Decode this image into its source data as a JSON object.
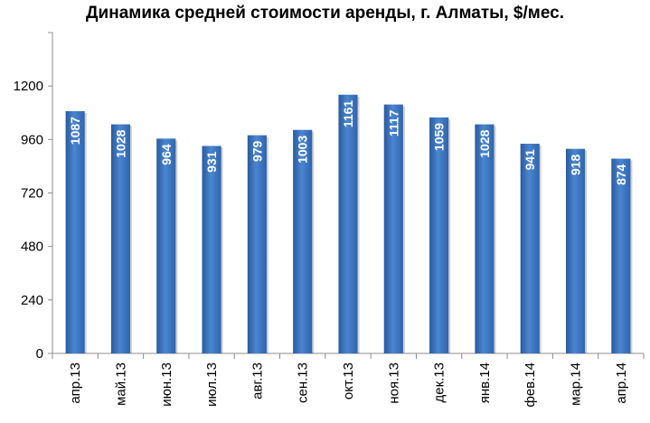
{
  "chart_data": {
    "type": "bar",
    "title": "Динамика средней стоимости аренды, г. Алматы, $/мес.",
    "categories": [
      "апр.13",
      "май.13",
      "июн.13",
      "июл.13",
      "авг.13",
      "сен.13",
      "окт.13",
      "ноя.13",
      "дек.13",
      "янв.14",
      "фев.14",
      "мар.14",
      "апр.14"
    ],
    "values": [
      1087,
      1028,
      964,
      931,
      979,
      1003,
      1161,
      1117,
      1059,
      1028,
      941,
      918,
      874
    ],
    "ylim": [
      0,
      1440
    ],
    "yticks": [
      0,
      240,
      480,
      720,
      960,
      1200
    ],
    "xlabel": "",
    "ylabel": "",
    "grid": false,
    "legend": "none",
    "bar_color_top": "#4a86d0",
    "bar_color_bottom": "#2a5a9e"
  }
}
